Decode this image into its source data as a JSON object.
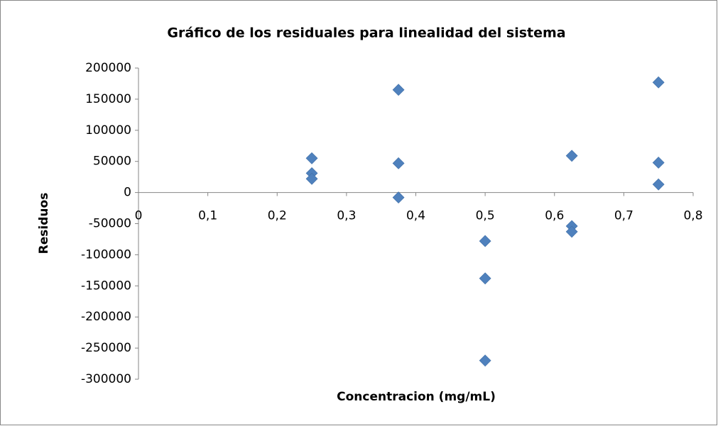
{
  "chart_data": {
    "type": "scatter",
    "title": "Gráfico de los residuales para linealidad del sistema",
    "x_label": "Concentracion (mg/mL)",
    "y_label": "Residuos",
    "x": [
      0.25,
      0.25,
      0.25,
      0.375,
      0.375,
      0.375,
      0.5,
      0.5,
      0.5,
      0.625,
      0.625,
      0.625,
      0.75,
      0.75,
      0.75
    ],
    "values": [
      55000,
      31000,
      22000,
      165000,
      47000,
      -8000,
      -78000,
      -138000,
      -270000,
      59000,
      -54000,
      -63000,
      177000,
      48000,
      13000
    ],
    "color": "#4f81bd",
    "marker": "diamond",
    "grid": false,
    "xlim": [
      0,
      0.8
    ],
    "ylim": [
      -300000,
      200000
    ],
    "xticks": [
      0,
      {
        "value": 0.1,
        "label": "0,1"
      },
      {
        "value": 0.2,
        "label": "0,2"
      },
      {
        "value": 0.3,
        "label": "0,3"
      },
      {
        "value": 0.4,
        "label": "0,4"
      },
      {
        "value": 0.5,
        "label": "0,5"
      },
      {
        "value": 0.6,
        "label": "0,6"
      },
      {
        "value": 0.7,
        "label": "0,7"
      },
      {
        "value": 0.8,
        "label": "0,8"
      }
    ],
    "yticks": [
      -300000,
      -250000,
      -200000,
      -150000,
      -100000,
      -50000,
      0,
      50000,
      100000,
      150000,
      200000
    ]
  }
}
